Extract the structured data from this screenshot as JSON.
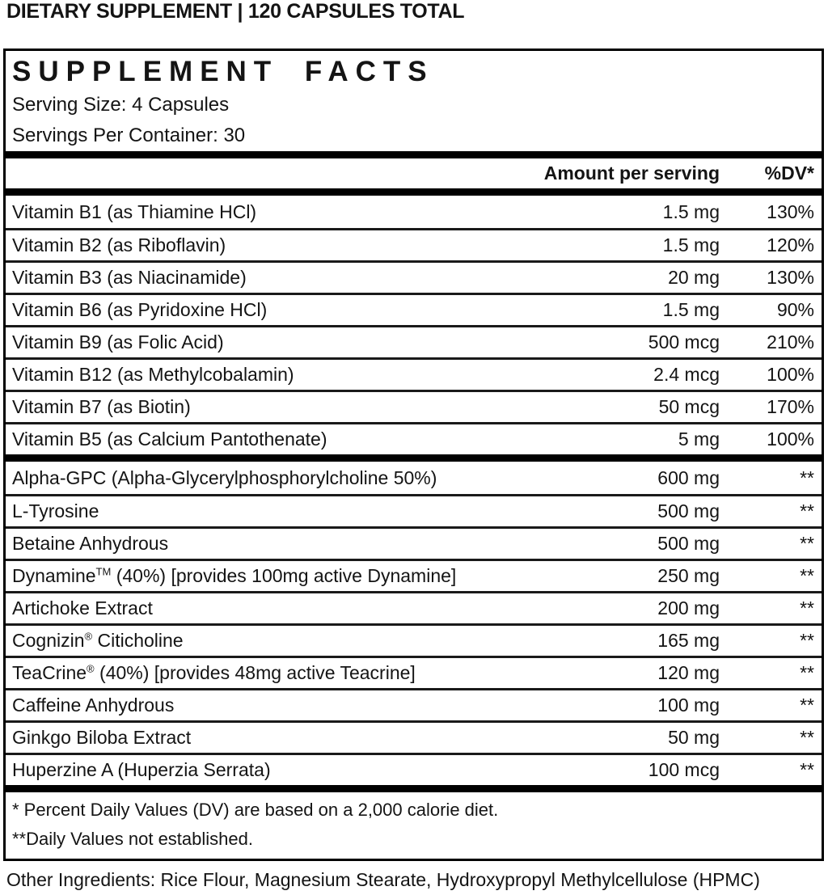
{
  "colors": {
    "text": "#141414",
    "border": "#000000",
    "background": "#ffffff"
  },
  "page": {
    "top_title": "DIETARY SUPPLEMENT | 120 CAPSULES TOTAL",
    "other_ingredients": "Other Ingredients: Rice Flour, Magnesium Stearate, Hydroxypropyl Methylcellulose (HPMC)"
  },
  "panel": {
    "title": "SUPPLEMENT FACTS",
    "serving_size": "Serving Size: 4 Capsules",
    "servings_per_container": "Servings Per Container: 30",
    "columns": {
      "amount": "Amount per serving",
      "dv": "%DV*"
    },
    "sections": [
      {
        "rows": [
          {
            "pre": "Vitamin B1 (as Thiamine HCl)",
            "sup": "",
            "post": "",
            "amount": "1.5 mg",
            "dv": "130%"
          },
          {
            "pre": "Vitamin B2 (as Riboflavin)",
            "sup": "",
            "post": "",
            "amount": "1.5 mg",
            "dv": "120%"
          },
          {
            "pre": "Vitamin B3 (as Niacinamide)",
            "sup": "",
            "post": "",
            "amount": "20 mg",
            "dv": "130%"
          },
          {
            "pre": "Vitamin B6 (as Pyridoxine HCl)",
            "sup": "",
            "post": "",
            "amount": "1.5 mg",
            "dv": "90%"
          },
          {
            "pre": "Vitamin B9 (as Folic Acid)",
            "sup": "",
            "post": "",
            "amount": "500 mcg",
            "dv": "210%"
          },
          {
            "pre": "Vitamin B12 (as Methylcobalamin)",
            "sup": "",
            "post": "",
            "amount": "2.4 mcg",
            "dv": "100%"
          },
          {
            "pre": "Vitamin B7 (as Biotin)",
            "sup": "",
            "post": "",
            "amount": "50 mcg",
            "dv": "170%"
          },
          {
            "pre": "Vitamin B5 (as Calcium Pantothenate)",
            "sup": "",
            "post": "",
            "amount": "5 mg",
            "dv": "100%"
          }
        ]
      },
      {
        "rows": [
          {
            "pre": "Alpha-GPC (Alpha-Glycerylphosphorylcholine 50%)",
            "sup": "",
            "post": "",
            "amount": "600 mg",
            "dv": "**"
          },
          {
            "pre": "L-Tyrosine",
            "sup": "",
            "post": "",
            "amount": "500 mg",
            "dv": "**"
          },
          {
            "pre": "Betaine Anhydrous",
            "sup": "",
            "post": "",
            "amount": "500 mg",
            "dv": "**"
          },
          {
            "pre": "Dynamine",
            "sup": "TM",
            "post": " (40%) [provides 100mg active Dynamine]",
            "amount": "250 mg",
            "dv": "**"
          },
          {
            "pre": "Artichoke Extract",
            "sup": "",
            "post": "",
            "amount": "200 mg",
            "dv": "**"
          },
          {
            "pre": "Cognizin",
            "sup": "®",
            "post": " Citicholine",
            "amount": "165 mg",
            "dv": "**"
          },
          {
            "pre": "TeaCrine",
            "sup": "®",
            "post": " (40%) [provides 48mg active Teacrine]",
            "amount": "120 mg",
            "dv": "**"
          },
          {
            "pre": "Caffeine Anhydrous",
            "sup": "",
            "post": "",
            "amount": "100 mg",
            "dv": "**"
          },
          {
            "pre": "Ginkgo Biloba Extract",
            "sup": "",
            "post": "",
            "amount": "50 mg",
            "dv": "**"
          },
          {
            "pre": "Huperzine A (Huperzia Serrata)",
            "sup": "",
            "post": "",
            "amount": "100 mcg",
            "dv": "**"
          }
        ]
      }
    ],
    "footnotes": [
      "* Percent Daily Values (DV) are based on a 2,000 calorie diet.",
      "**Daily Values not established."
    ]
  }
}
